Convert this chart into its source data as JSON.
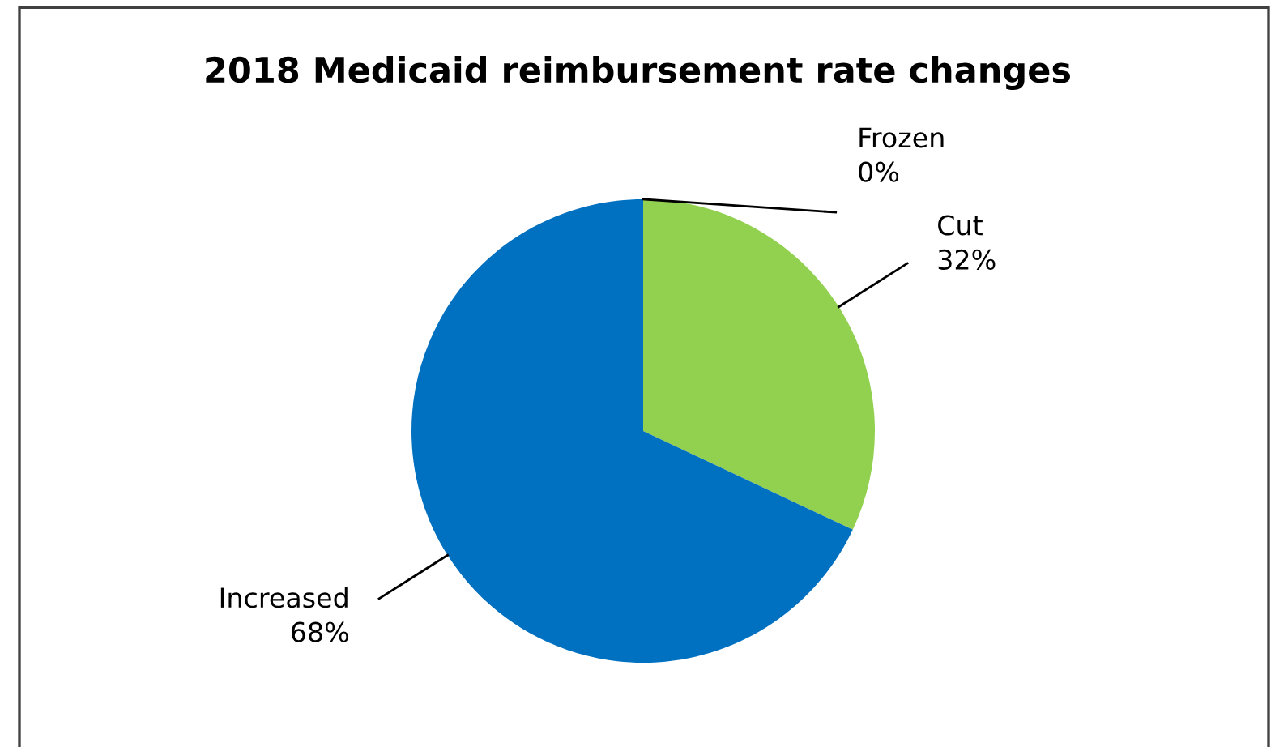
{
  "chart_data": {
    "type": "pie",
    "title": "2018 Medicaid reimbursement rate changes",
    "categories": [
      "Frozen",
      "Cut",
      "Increased"
    ],
    "values": [
      0,
      32,
      68
    ],
    "colors": [
      "#a5a5a5",
      "#92d050",
      "#0070c0"
    ],
    "value_labels": [
      "0%",
      "32%",
      "68%"
    ],
    "legend": false
  }
}
